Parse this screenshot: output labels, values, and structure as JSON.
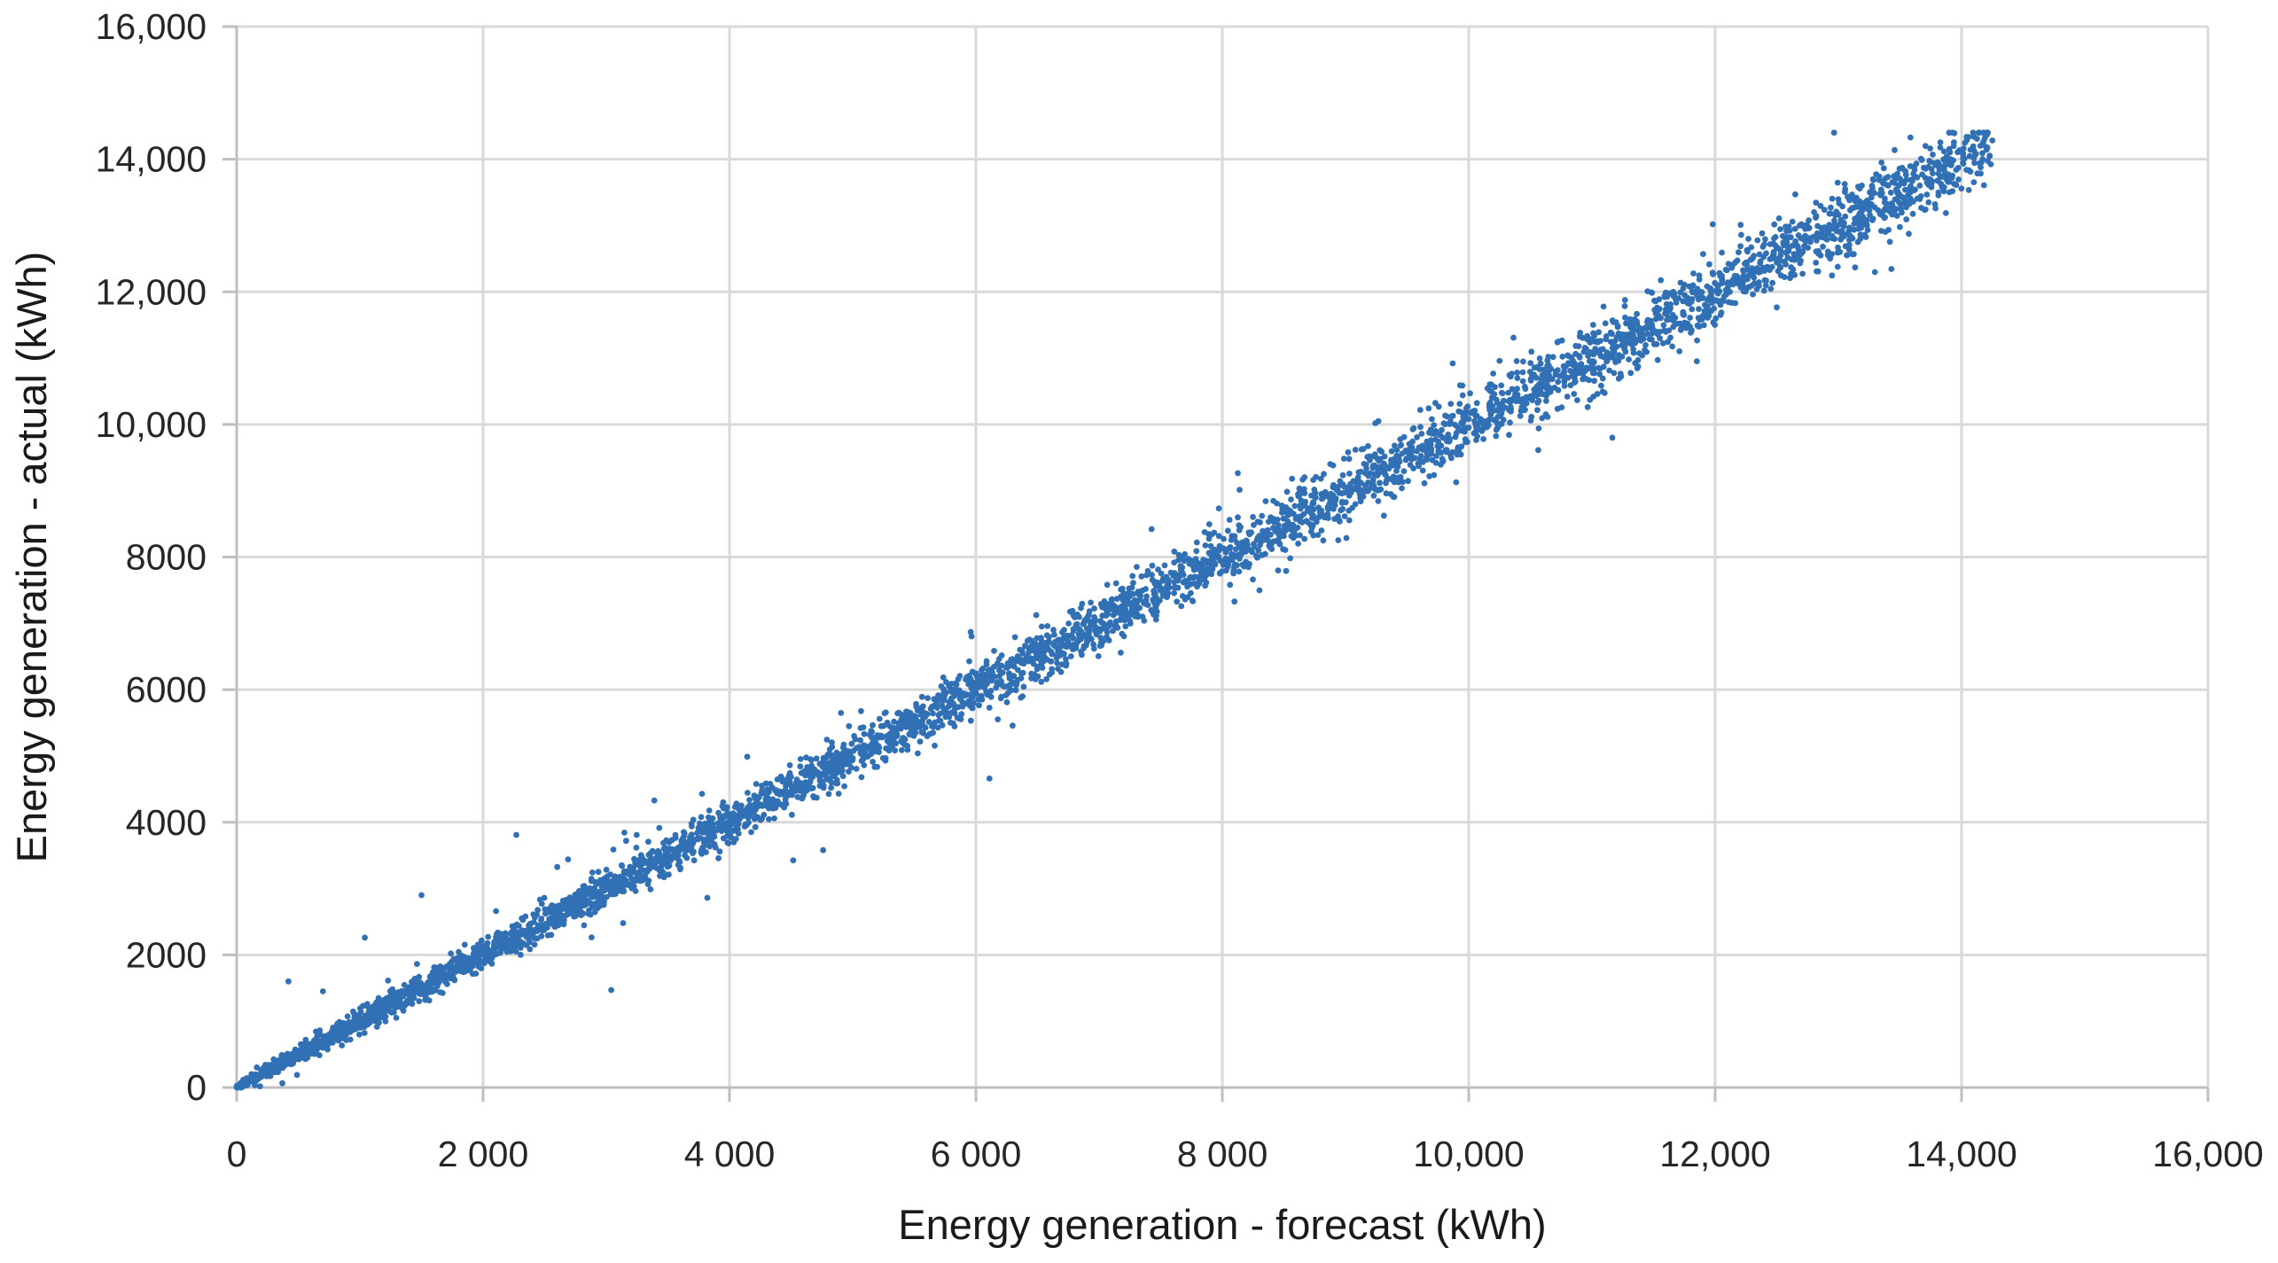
{
  "figure": {
    "background_color": "#ffffff"
  },
  "chart_data": {
    "type": "scatter",
    "title": "",
    "xlabel": "Energy generation - forecast (kWh)",
    "ylabel": "Energy generation - actual (kWh)",
    "xlim": [
      0,
      16000
    ],
    "ylim": [
      0,
      16000
    ],
    "grid": true,
    "legend": false,
    "x_ticks": [
      {
        "value": 0,
        "label": "0"
      },
      {
        "value": 2000,
        "label": "2 000"
      },
      {
        "value": 4000,
        "label": "4 000"
      },
      {
        "value": 6000,
        "label": "6 000"
      },
      {
        "value": 8000,
        "label": "8 000"
      },
      {
        "value": 10000,
        "label": "10,000"
      },
      {
        "value": 12000,
        "label": "12,000"
      },
      {
        "value": 14000,
        "label": "14,000"
      },
      {
        "value": 16000,
        "label": "16,000"
      }
    ],
    "y_ticks": [
      {
        "value": 0,
        "label": "0"
      },
      {
        "value": 2000,
        "label": "2000"
      },
      {
        "value": 4000,
        "label": "4000"
      },
      {
        "value": 6000,
        "label": "6000"
      },
      {
        "value": 8000,
        "label": "8000"
      },
      {
        "value": 10000,
        "label": "10,000"
      },
      {
        "value": 12000,
        "label": "12,000"
      },
      {
        "value": 14000,
        "label": "14,000"
      },
      {
        "value": 16000,
        "label": "16,000"
      }
    ],
    "marker_color": "#3170B5",
    "marker_radius_px": 3.4,
    "gridline_color": "#D9D9D9",
    "axis_line_color": "#BFBFBF",
    "tick_label_color": "#262626",
    "axis_title_color": "#1A1A1A",
    "relationship": "actual tracks forecast, y approximately equals x from 0 to about 14,200 kWh with scatter widening at higher values",
    "point_cloud": {
      "n_points": 4600,
      "x_max": 14250,
      "density_exponent": 1.15,
      "noise_sigma_base": 15,
      "noise_sigma_sqrt_coef": 2.1,
      "halo_fraction": 0.05,
      "halo_multiplier": 2.6,
      "y_clamp_max": 14400,
      "seed": 1234
    },
    "outliers": [
      [
        490,
        190
      ],
      [
        420,
        1600
      ],
      [
        700,
        1450
      ],
      [
        1040,
        2260
      ],
      [
        1500,
        2900
      ],
      [
        2270,
        3810
      ],
      [
        2690,
        3440
      ],
      [
        3040,
        1470
      ],
      [
        3390,
        4330
      ],
      [
        3820,
        2860
      ],
      [
        4760,
        3580
      ],
      [
        6110,
        4660
      ],
      [
        9870,
        10920
      ],
      [
        9930,
        10590
      ],
      [
        10250,
        10960
      ]
    ]
  }
}
